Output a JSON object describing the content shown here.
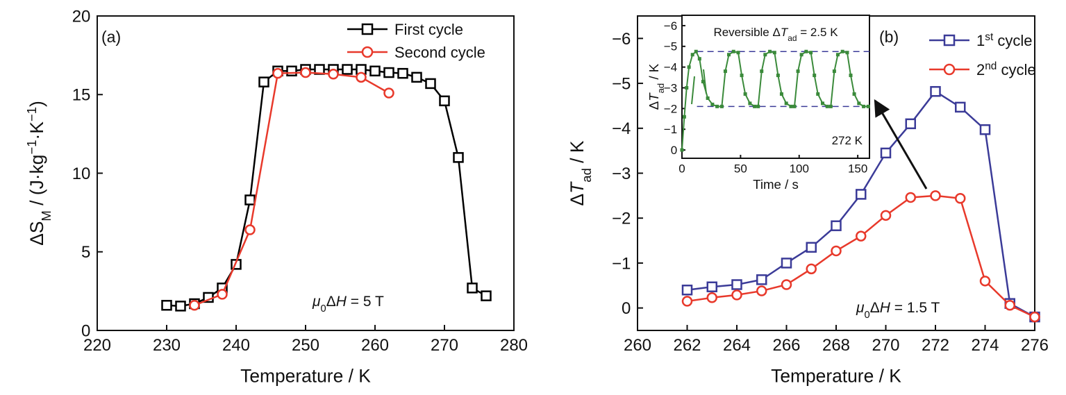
{
  "chart_data": [
    {
      "type": "line",
      "panel_label": "(a)",
      "x_label": "Temperature / K",
      "y_label": [
        {
          "text": "ΔS",
          "style": "normal"
        },
        {
          "text": "M",
          "style": "sub"
        },
        {
          "text": " / (J·kg",
          "style": "normal"
        },
        {
          "text": "−1",
          "style": "sup"
        },
        {
          "text": "·K",
          "style": "normal"
        },
        {
          "text": "−1",
          "style": "sup"
        },
        {
          "text": ")",
          "style": "normal"
        }
      ],
      "annotation": [
        {
          "text": "μ",
          "style": "italic"
        },
        {
          "text": "0",
          "style": "sub"
        },
        {
          "text": "Δ",
          "style": "normal"
        },
        {
          "text": "H",
          "style": "italic"
        },
        {
          "text": " =  5 T",
          "style": "normal"
        }
      ],
      "xlim": [
        220,
        280
      ],
      "xticks": [
        220,
        230,
        240,
        250,
        260,
        270,
        280
      ],
      "ylim": [
        0,
        20
      ],
      "yticks": [
        0,
        5,
        10,
        15,
        20
      ],
      "legend": "upper right",
      "series": [
        {
          "name": "First cycle",
          "color": "#000000",
          "marker": "square",
          "x": [
            230,
            232,
            234,
            236,
            238,
            240,
            242,
            244,
            246,
            248,
            250,
            252,
            254,
            256,
            258,
            260,
            262,
            264,
            266,
            268,
            270,
            272,
            274,
            276
          ],
          "values": [
            1.6,
            1.55,
            1.7,
            2.1,
            2.7,
            4.2,
            8.3,
            15.8,
            16.5,
            16.5,
            16.6,
            16.6,
            16.6,
            16.6,
            16.6,
            16.5,
            16.4,
            16.35,
            16.1,
            15.7,
            14.6,
            11.0,
            2.7,
            2.2
          ]
        },
        {
          "name": "Second cycle",
          "color": "#e8392b",
          "marker": "circle",
          "x": [
            234,
            238,
            242,
            246,
            250,
            254,
            258,
            262
          ],
          "values": [
            1.6,
            2.3,
            6.4,
            16.35,
            16.4,
            16.3,
            16.1,
            15.1
          ]
        }
      ]
    },
    {
      "type": "line",
      "panel_label": "(b)",
      "x_label": "Temperature / K",
      "y_label": [
        {
          "text": "Δ",
          "style": "normal"
        },
        {
          "text": "T",
          "style": "italic"
        },
        {
          "text": "ad",
          "style": "sub"
        },
        {
          "text": " / K",
          "style": "normal"
        }
      ],
      "annotation": [
        {
          "text": "μ",
          "style": "italic"
        },
        {
          "text": "0",
          "style": "sub"
        },
        {
          "text": "Δ",
          "style": "normal"
        },
        {
          "text": "H",
          "style": "italic"
        },
        {
          "text": " =  1.5 T",
          "style": "normal"
        }
      ],
      "xlim": [
        260,
        276
      ],
      "xticks": [
        260,
        262,
        264,
        266,
        268,
        270,
        272,
        274,
        276
      ],
      "ylim": [
        0.5,
        -6.5
      ],
      "yticks": [
        0,
        {
          "value": -1,
          "label": "−1"
        },
        {
          "value": -2,
          "label": "−2"
        },
        {
          "value": -3,
          "label": "−3"
        },
        {
          "value": -4,
          "label": "−4"
        },
        {
          "value": -5,
          "label": "−5"
        },
        {
          "value": -6,
          "label": "−6"
        }
      ],
      "legend": "upper right",
      "series": [
        {
          "name": [
            {
              "text": "1",
              "style": "normal"
            },
            {
              "text": "st",
              "style": "sup"
            },
            {
              "text": " cycle",
              "style": "normal"
            }
          ],
          "color": "#3b3b98",
          "marker": "square",
          "x": [
            262,
            263,
            264,
            265,
            266,
            267,
            268,
            269,
            270,
            271,
            272,
            273,
            274,
            275,
            276
          ],
          "values": [
            -0.4,
            -0.47,
            -0.52,
            -0.63,
            -1.0,
            -1.35,
            -1.83,
            -2.53,
            -3.45,
            -4.1,
            -4.82,
            -4.47,
            -3.97,
            -0.1,
            0.2
          ]
        },
        {
          "name": [
            {
              "text": "2",
              "style": "normal"
            },
            {
              "text": "nd",
              "style": "sup"
            },
            {
              "text": " cycle",
              "style": "normal"
            }
          ],
          "color": "#e8392b",
          "marker": "circle",
          "x": [
            262,
            263,
            264,
            265,
            266,
            267,
            268,
            269,
            270,
            271,
            272,
            273,
            274,
            275,
            276
          ],
          "values": [
            -0.15,
            -0.23,
            -0.29,
            -0.38,
            -0.52,
            -0.87,
            -1.27,
            -1.6,
            -2.06,
            -2.46,
            -2.5,
            -2.44,
            -0.6,
            -0.06,
            0.2
          ]
        }
      ]
    },
    {
      "type": "line",
      "title": [
        {
          "text": "Reversible Δ",
          "style": "normal"
        },
        {
          "text": "T",
          "style": "italic"
        },
        {
          "text": "ad",
          "style": "sub"
        },
        {
          "text": " = 2.5 K",
          "style": "normal"
        }
      ],
      "annotation": "272 K",
      "x_label": "Time / s",
      "y_label": [
        {
          "text": "Δ",
          "style": "normal"
        },
        {
          "text": "T",
          "style": "italic"
        },
        {
          "text": "ad",
          "style": "sub"
        },
        {
          "text": " / K",
          "style": "normal"
        }
      ],
      "xlim": [
        0,
        160
      ],
      "xticks": [
        0,
        50,
        100,
        150
      ],
      "ylim": [
        0.4,
        -6.5
      ],
      "yticks": [
        0,
        {
          "value": -1,
          "label": "−1"
        },
        {
          "value": -2,
          "label": "−2"
        },
        {
          "value": -3,
          "label": "−3"
        },
        {
          "value": -4,
          "label": "−4"
        },
        {
          "value": -5,
          "label": "−5"
        },
        {
          "value": -6,
          "label": "−6"
        }
      ],
      "reference_lines": [
        -4.75,
        -2.1
      ],
      "series": [
        {
          "color": "#3a8a3a",
          "marker": "square",
          "x": [
            0,
            2,
            4,
            6,
            9,
            12,
            15,
            18,
            22,
            26,
            30,
            34,
            37,
            40,
            44,
            48,
            51,
            54,
            58,
            62,
            65,
            68,
            71,
            75,
            79,
            82,
            85,
            89,
            93,
            96,
            99,
            102,
            106,
            110,
            113,
            116,
            120,
            124,
            127,
            130,
            133,
            137,
            141,
            144,
            147,
            151,
            155,
            159
          ],
          "values": [
            0,
            -1.6,
            -3.0,
            -4.0,
            -4.6,
            -4.75,
            -4.4,
            -3.3,
            -2.5,
            -2.2,
            -2.1,
            -2.1,
            -3.8,
            -4.6,
            -4.75,
            -4.7,
            -3.6,
            -2.7,
            -2.25,
            -2.1,
            -2.1,
            -3.8,
            -4.6,
            -4.75,
            -4.7,
            -3.6,
            -2.7,
            -2.25,
            -2.1,
            -2.1,
            -3.8,
            -4.6,
            -4.75,
            -4.7,
            -3.6,
            -2.7,
            -2.25,
            -2.1,
            -2.1,
            -3.8,
            -4.6,
            -4.75,
            -4.7,
            -3.6,
            -2.7,
            -2.25,
            -2.1,
            -2.1
          ]
        }
      ]
    }
  ]
}
